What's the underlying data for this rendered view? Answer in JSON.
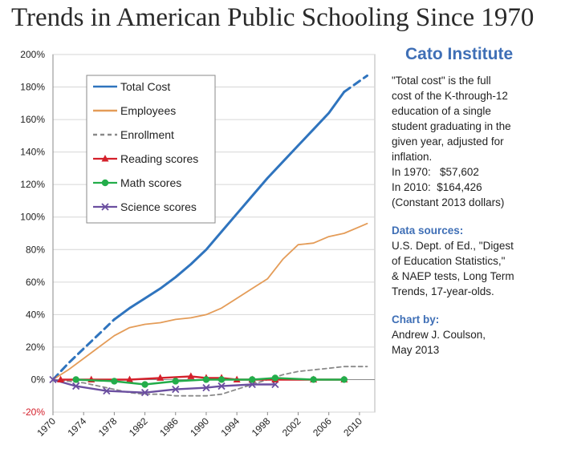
{
  "page_title": "Trends in American Public Schooling Since 1970",
  "sidebar": {
    "org": "Cato Institute",
    "note_lines": [
      "\"Total cost\" is the full",
      "cost of the K-through-12",
      "education of a single",
      "student graduating in the",
      "given year, adjusted for",
      "inflation.",
      "In 1970:   $57,602",
      "In 2010:  $164,426",
      "(Constant 2013 dollars)"
    ],
    "sources_heading": "Data sources:",
    "sources_lines": [
      "U.S. Dept. of Ed., \"Digest",
      "of Education Statistics,\"",
      "& NAEP tests, Long Term",
      "Trends, 17-year-olds."
    ],
    "credit_heading": "Chart by:",
    "credit_lines": [
      "Andrew J. Coulson,",
      "May 2013"
    ]
  },
  "chart_data": {
    "type": "line",
    "title": "Trends in American Public Schooling Since 1970",
    "xlabel": "",
    "ylabel": "",
    "xlim": [
      1970,
      2012
    ],
    "ylim": [
      -20,
      200
    ],
    "x_ticks": [
      1970,
      1974,
      1978,
      1982,
      1986,
      1990,
      1994,
      1998,
      2002,
      2006,
      2010
    ],
    "y_ticks": [
      -20,
      0,
      20,
      40,
      60,
      80,
      100,
      120,
      140,
      160,
      180,
      200
    ],
    "y_tick_labels": [
      "-20%",
      "0%",
      "20%",
      "40%",
      "60%",
      "80%",
      "100%",
      "120%",
      "140%",
      "160%",
      "180%",
      "200%"
    ],
    "grid": true,
    "legend_position": "top-left",
    "series": [
      {
        "name": "Total Cost",
        "color": "#2f74be",
        "style": "solid",
        "marker": "none",
        "x": [
          1978,
          1980,
          1982,
          1984,
          1986,
          1988,
          1990,
          1992,
          1994,
          1996,
          1998,
          2000,
          2002,
          2004,
          2006,
          2008
        ],
        "values": [
          37,
          44,
          50,
          56,
          63,
          71,
          80,
          91,
          102,
          113,
          124,
          134,
          144,
          154,
          164,
          177
        ]
      },
      {
        "name": "Total Cost (dashed segment)",
        "color": "#2f74be",
        "style": "dash",
        "marker": "none",
        "x": [
          1970,
          1972,
          1974,
          1976,
          1978
        ],
        "values": [
          0,
          10,
          19,
          28,
          37
        ]
      },
      {
        "name": "Total Cost (dashed segment)",
        "color": "#2f74be",
        "style": "dash",
        "marker": "none",
        "x": [
          2008,
          2011
        ],
        "values": [
          177,
          187
        ]
      },
      {
        "name": "Employees",
        "color": "#e49c58",
        "style": "solid",
        "marker": "none",
        "x": [
          1970,
          1972,
          1974,
          1976,
          1978,
          1980,
          1982,
          1984,
          1986,
          1988,
          1990,
          1992,
          1994,
          1996,
          1998,
          2000,
          2002,
          2004,
          2006,
          2008,
          2010,
          2011
        ],
        "values": [
          0,
          6,
          13,
          20,
          27,
          32,
          34,
          35,
          37,
          38,
          40,
          44,
          50,
          56,
          62,
          74,
          83,
          84,
          88,
          90,
          94,
          96
        ]
      },
      {
        "name": "Enrollment",
        "color": "#8a8a8a",
        "style": "dash",
        "marker": "none",
        "x": [
          1970,
          1972,
          1974,
          1976,
          1978,
          1980,
          1982,
          1984,
          1986,
          1988,
          1990,
          1992,
          1994,
          1996,
          1998,
          2000,
          2002,
          2004,
          2006,
          2008,
          2010,
          2011
        ],
        "values": [
          0,
          -1,
          -2,
          -4,
          -6,
          -8,
          -9,
          -9,
          -10,
          -10,
          -10,
          -9,
          -6,
          -3,
          0,
          3,
          5,
          6,
          7,
          8,
          8,
          8
        ]
      },
      {
        "name": "Reading scores",
        "color": "#d4202b",
        "style": "solid",
        "marker": "triangle",
        "x": [
          1971,
          1975,
          1980,
          1984,
          1988,
          1990,
          1992,
          1994,
          1996,
          1999,
          2004,
          2008
        ],
        "values": [
          0,
          0,
          0,
          1,
          2,
          1,
          1,
          0,
          0,
          0,
          0,
          0
        ]
      },
      {
        "name": "Math scores",
        "color": "#23ad4a",
        "style": "solid",
        "marker": "circle",
        "x": [
          1973,
          1978,
          1982,
          1986,
          1990,
          1992,
          1996,
          1999,
          2004,
          2008
        ],
        "values": [
          0,
          -1,
          -3,
          -1,
          0,
          0,
          0,
          1,
          0,
          0
        ]
      },
      {
        "name": "Science scores",
        "color": "#6b4fa0",
        "style": "solid",
        "marker": "x",
        "x": [
          1970,
          1973,
          1977,
          1982,
          1986,
          1990,
          1992,
          1996,
          1999
        ],
        "values": [
          0,
          -4,
          -7,
          -8,
          -6,
          -5,
          -4,
          -3,
          -3
        ]
      }
    ],
    "legend": [
      {
        "label": "Total Cost",
        "color": "#2f74be",
        "style": "solid",
        "marker": "none"
      },
      {
        "label": "Employees",
        "color": "#e49c58",
        "style": "solid",
        "marker": "none"
      },
      {
        "label": "Enrollment",
        "color": "#8a8a8a",
        "style": "dash",
        "marker": "none"
      },
      {
        "label": "Reading scores",
        "color": "#d4202b",
        "style": "solid",
        "marker": "triangle"
      },
      {
        "label": "Math scores",
        "color": "#23ad4a",
        "style": "solid",
        "marker": "circle"
      },
      {
        "label": "Science scores",
        "color": "#6b4fa0",
        "style": "solid",
        "marker": "x"
      }
    ]
  }
}
